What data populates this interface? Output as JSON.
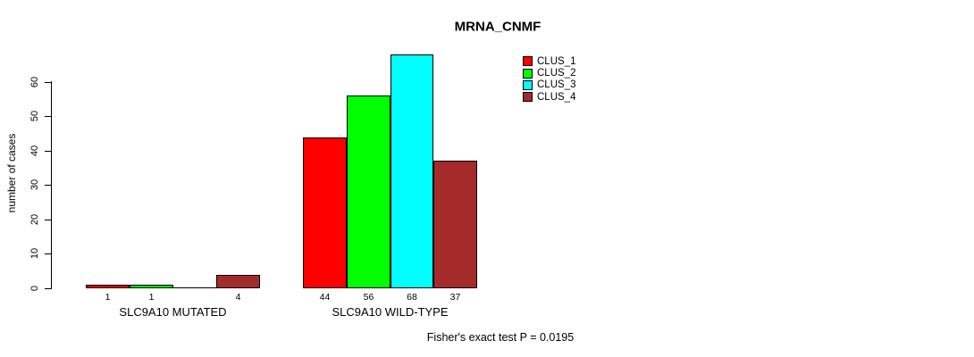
{
  "title": "MRNA_CNMF",
  "ylabel": "number of cases",
  "footer": "Fisher's exact test P = 0.0195",
  "colors": {
    "clus_1": "#FF0000",
    "clus_2": "#00FF00",
    "clus_3": "#00FFFF",
    "clus_4": "#A52A2A"
  },
  "chart_data": {
    "type": "bar",
    "title": "MRNA_CNMF",
    "xlabel": "",
    "ylabel": "number of cases",
    "categories": [
      "SLC9A10 MUTATED",
      "SLC9A10 WILD-TYPE"
    ],
    "series": [
      {
        "name": "CLUS_1",
        "color": "#FF0000",
        "values": [
          1,
          44
        ]
      },
      {
        "name": "CLUS_2",
        "color": "#00FF00",
        "values": [
          1,
          56
        ]
      },
      {
        "name": "CLUS_3",
        "color": "#00FFFF",
        "values": [
          0,
          68
        ]
      },
      {
        "name": "CLUS_4",
        "color": "#A52A2A",
        "values": [
          4,
          37
        ]
      }
    ],
    "bar_value_labels": [
      [
        "1",
        "1",
        "",
        "4"
      ],
      [
        "44",
        "56",
        "68",
        "37"
      ]
    ],
    "yticks": [
      0,
      10,
      20,
      30,
      40,
      50,
      60
    ],
    "ylim": [
      0,
      70
    ],
    "grid": false,
    "legend_position": "top-right",
    "annotation": "Fisher's exact test P = 0.0195"
  }
}
